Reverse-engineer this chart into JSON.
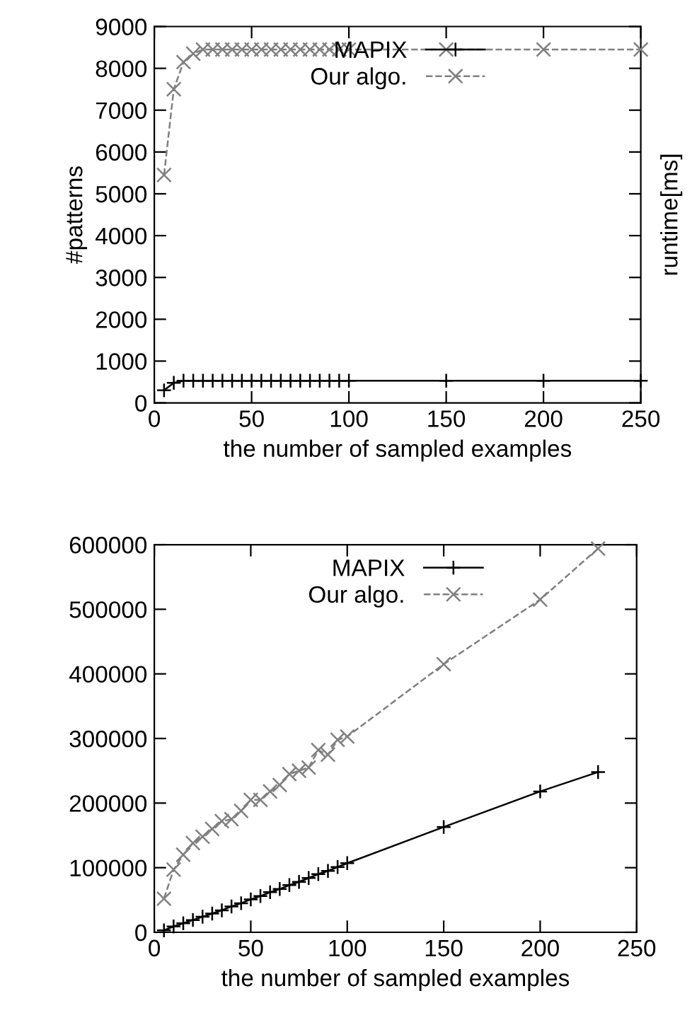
{
  "chart_data": [
    {
      "type": "line",
      "xlabel": "the number of sampled examples",
      "ylabel": "#patterns",
      "y2label": "runtime[ms]",
      "xlim": [
        0,
        250
      ],
      "xticks": [
        0,
        50,
        100,
        150,
        200,
        250
      ],
      "ylim": [
        0,
        9000
      ],
      "yticks": [
        0,
        1000,
        2000,
        3000,
        4000,
        5000,
        6000,
        7000,
        8000,
        9000
      ],
      "grid": false,
      "legend": "top",
      "series": [
        {
          "name": "MAPIX",
          "color": "#000000",
          "marker": "plus",
          "line_style": "solid",
          "x": [
            5,
            10,
            15,
            20,
            25,
            30,
            35,
            40,
            45,
            50,
            55,
            60,
            65,
            70,
            75,
            80,
            85,
            90,
            95,
            100,
            150,
            200,
            250
          ],
          "values": [
            300,
            480,
            530,
            530,
            530,
            530,
            530,
            530,
            530,
            530,
            530,
            530,
            530,
            530,
            530,
            530,
            530,
            530,
            530,
            530,
            530,
            530,
            530
          ]
        },
        {
          "name": "Our algo.",
          "color": "#808080",
          "marker": "cross",
          "line_style": "dashed",
          "x": [
            5,
            10,
            15,
            20,
            25,
            30,
            35,
            40,
            45,
            50,
            55,
            60,
            65,
            70,
            75,
            80,
            85,
            90,
            95,
            100,
            150,
            200,
            250
          ],
          "values": [
            5450,
            7500,
            8150,
            8350,
            8450,
            8450,
            8450,
            8450,
            8450,
            8450,
            8450,
            8450,
            8450,
            8450,
            8450,
            8450,
            8450,
            8450,
            8450,
            8450,
            8450,
            8450,
            8450
          ]
        }
      ]
    },
    {
      "type": "line",
      "xlabel": "the number of sampled examples",
      "xlim": [
        0,
        250
      ],
      "xticks": [
        0,
        50,
        100,
        150,
        200,
        250
      ],
      "ylim": [
        0,
        600000
      ],
      "yticks": [
        0,
        100000,
        200000,
        300000,
        400000,
        500000,
        600000
      ],
      "grid": false,
      "legend": "top",
      "series": [
        {
          "name": "MAPIX",
          "color": "#000000",
          "marker": "plus",
          "line_style": "solid",
          "x": [
            5,
            10,
            15,
            20,
            25,
            30,
            35,
            40,
            45,
            50,
            55,
            60,
            65,
            70,
            75,
            80,
            85,
            90,
            95,
            100,
            150,
            200,
            230
          ],
          "values": [
            3000,
            9000,
            14000,
            19000,
            24000,
            29000,
            34000,
            40000,
            45000,
            51000,
            56000,
            62000,
            67000,
            73000,
            78000,
            84000,
            90000,
            95000,
            101000,
            107000,
            163000,
            218000,
            248000
          ]
        },
        {
          "name": "Our algo.",
          "color": "#808080",
          "marker": "cross",
          "line_style": "dashed",
          "x": [
            5,
            10,
            15,
            20,
            25,
            30,
            35,
            40,
            45,
            50,
            55,
            60,
            65,
            70,
            75,
            80,
            85,
            90,
            95,
            100,
            150,
            200,
            230
          ],
          "values": [
            52000,
            97000,
            120000,
            138000,
            148000,
            160000,
            172000,
            175000,
            188000,
            205000,
            205000,
            218000,
            228000,
            245000,
            250000,
            255000,
            282000,
            275000,
            298000,
            303000,
            415000,
            515000,
            594000
          ]
        }
      ]
    }
  ]
}
